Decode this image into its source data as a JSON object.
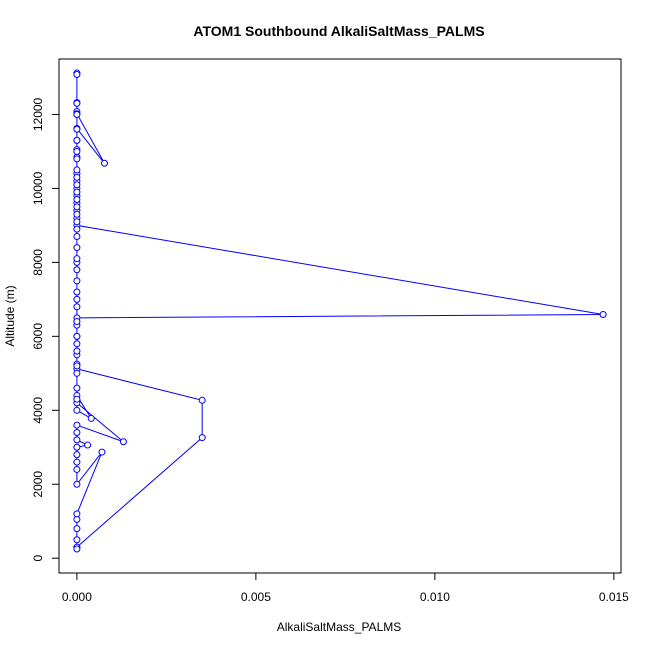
{
  "chart_data": {
    "type": "line",
    "title": "ATOM1 Southbound AlkaliSaltMass_PALMS",
    "xlabel": "AlkaliSaltMass_PALMS",
    "ylabel": "Altitude (m)",
    "xlim": [
      -0.0005,
      0.0152
    ],
    "ylim": [
      -400,
      13500
    ],
    "xticks": [
      0.0,
      0.005,
      0.01,
      0.015
    ],
    "xtick_labels": [
      "0.000",
      "0.005",
      "0.010",
      "0.015"
    ],
    "yticks": [
      0,
      2000,
      4000,
      6000,
      8000,
      10000,
      12000
    ],
    "ytick_labels": [
      "0",
      "2000",
      "4000",
      "6000",
      "8000",
      "10000",
      "12000"
    ],
    "grid": false,
    "legend": "none",
    "series_color": "#0000ff",
    "marker": "open-circle",
    "series": [
      {
        "points": [
          [
            0.0,
            13120
          ],
          [
            0.0,
            13080
          ],
          [
            0.0,
            12320
          ],
          [
            0.0,
            12080
          ],
          [
            0.0,
            12020
          ],
          [
            0.00077,
            10680
          ],
          [
            0.0,
            11620
          ],
          [
            0.0,
            11300
          ],
          [
            0.0,
            11050
          ],
          [
            0.0,
            10850
          ],
          [
            0.0,
            10400
          ],
          [
            0.0,
            10200
          ],
          [
            0.0,
            10000
          ],
          [
            0.0,
            9800
          ],
          [
            0.0,
            9600
          ],
          [
            0.0,
            9400
          ],
          [
            0.0,
            9200
          ],
          [
            0.0,
            9000
          ],
          [
            0.0147,
            6590
          ],
          [
            0.0,
            6500
          ],
          [
            0.0,
            6300
          ],
          [
            0.0,
            6000
          ],
          [
            0.0,
            5800
          ],
          [
            0.0,
            5500
          ],
          [
            0.0,
            5250
          ],
          [
            0.0,
            5120
          ],
          [
            0.0035,
            4270
          ],
          [
            0.0035,
            3260
          ],
          [
            0.0,
            300
          ],
          [
            0.0,
            250
          ],
          [
            0.0,
            500
          ],
          [
            0.0,
            800
          ],
          [
            0.0,
            1050
          ],
          [
            0.0,
            1200
          ],
          [
            0.0007,
            2870
          ],
          [
            0.0,
            2000
          ],
          [
            0.0,
            2400
          ],
          [
            0.0,
            2600
          ],
          [
            0.0,
            2800
          ],
          [
            0.0,
            3000
          ],
          [
            0.0003,
            3060
          ],
          [
            0.0,
            3200
          ],
          [
            0.0,
            3400
          ],
          [
            0.0,
            3600
          ],
          [
            0.0013,
            3150
          ],
          [
            0.0,
            4200
          ],
          [
            0.0,
            4400
          ],
          [
            0.0004,
            3780
          ],
          [
            0.0,
            4000
          ],
          [
            0.0,
            4300
          ],
          [
            0.0,
            4600
          ],
          [
            0.0,
            5000
          ],
          [
            0.0,
            5200
          ],
          [
            0.0,
            5600
          ],
          [
            0.0,
            6000
          ],
          [
            0.0,
            6400
          ],
          [
            0.0,
            6800
          ],
          [
            0.0,
            7000
          ],
          [
            0.0,
            7200
          ],
          [
            0.0,
            7500
          ],
          [
            0.0,
            7800
          ],
          [
            0.0,
            8000
          ],
          [
            0.0,
            8100
          ],
          [
            0.0,
            8400
          ],
          [
            0.0,
            8700
          ],
          [
            0.0,
            8900
          ],
          [
            0.0,
            9100
          ],
          [
            0.0,
            9300
          ],
          [
            0.0,
            9500
          ],
          [
            0.0,
            9700
          ],
          [
            0.0,
            9900
          ],
          [
            0.0,
            10100
          ],
          [
            0.0,
            10300
          ],
          [
            0.0,
            10500
          ],
          [
            0.0,
            10800
          ],
          [
            0.0,
            11000
          ],
          [
            0.0,
            11300
          ],
          [
            0.0,
            11600
          ],
          [
            0.0,
            12000
          ],
          [
            0.0,
            12300
          ]
        ]
      }
    ]
  }
}
